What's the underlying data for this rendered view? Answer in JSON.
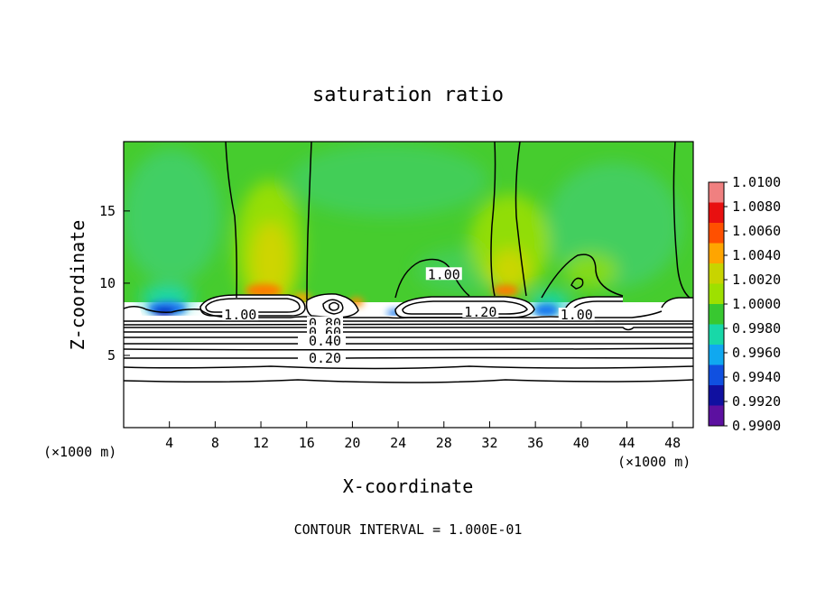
{
  "chart_data": {
    "type": "heatmap",
    "title": "saturation ratio",
    "xlabel": "X-coordinate",
    "ylabel": "Z-coordinate",
    "x_unit": "(×1000 m)",
    "y_unit": "(×1000 m)",
    "xlim": [
      0,
      49.8
    ],
    "ylim": [
      0,
      19.8
    ],
    "x_ticks": [
      4,
      8,
      12,
      16,
      20,
      24,
      28,
      32,
      36,
      40,
      44,
      48
    ],
    "y_ticks": [
      5,
      10,
      15
    ],
    "colorbar": {
      "min": 0.99,
      "max": 1.01,
      "labels": [
        "1.0100",
        "1.0080",
        "1.0060",
        "1.0040",
        "1.0020",
        "1.0000",
        "0.9980",
        "0.9960",
        "0.9940",
        "0.9920",
        "0.9900"
      ],
      "colors": [
        "#f08080",
        "#e81010",
        "#ff5000",
        "#ffa500",
        "#c8d400",
        "#9ee000",
        "#38c830",
        "#18d8a8",
        "#10a8f0",
        "#1050e0",
        "#1010a0",
        "#5c10a0"
      ]
    },
    "contour_labels": [
      {
        "text": "1.00",
        "x": 10.2,
        "z": 7.8
      },
      {
        "text": "0.80",
        "x": 17.6,
        "z": 7.2
      },
      {
        "text": "0.60",
        "x": 17.6,
        "z": 6.6
      },
      {
        "text": "0.40",
        "x": 17.6,
        "z": 6.0
      },
      {
        "text": "0.20",
        "x": 17.6,
        "z": 4.8
      },
      {
        "text": "1.20",
        "x": 31.2,
        "z": 8.0
      },
      {
        "text": "1.00",
        "x": 39.6,
        "z": 7.8
      },
      {
        "text": "1.00",
        "x": 28.0,
        "z": 10.6
      }
    ],
    "contour_interval_label": "CONTOUR INTERVAL = 1.000E-01"
  }
}
